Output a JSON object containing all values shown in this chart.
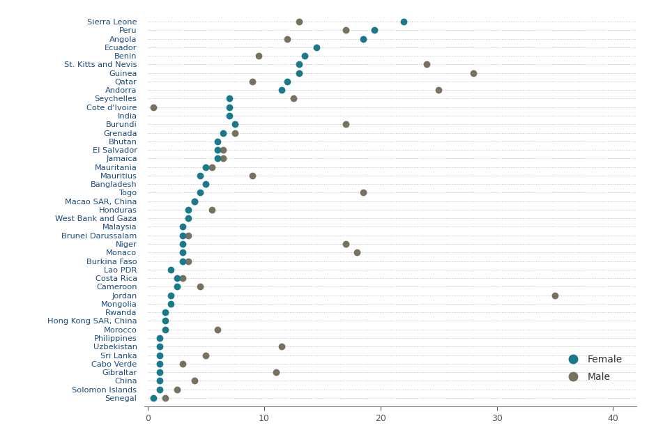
{
  "countries": [
    "Sierra Leone",
    "Peru",
    "Angola",
    "Ecuador",
    "Benin",
    "St. Kitts and Nevis",
    "Guinea",
    "Qatar",
    "Andorra",
    "Seychelles",
    "Cote d'Ivoire",
    "India",
    "Burundi",
    "Grenada",
    "Bhutan",
    "El Salvador",
    "Jamaica",
    "Mauritania",
    "Mauritius",
    "Bangladesh",
    "Togo",
    "Macao SAR, China",
    "Honduras",
    "West Bank and Gaza",
    "Malaysia",
    "Brunei Darussalam",
    "Niger",
    "Monaco",
    "Burkina Faso",
    "Lao PDR",
    "Costa Rica",
    "Cameroon",
    "Jordan",
    "Mongolia",
    "Rwanda",
    "Hong Kong SAR, China",
    "Morocco",
    "Philippines",
    "Uzbekistan",
    "Sri Lanka",
    "Cabo Verde",
    "Gibraltar",
    "China",
    "Solomon Islands",
    "Senegal"
  ],
  "female": [
    22.0,
    19.5,
    18.5,
    14.5,
    13.5,
    13.0,
    13.0,
    12.0,
    11.5,
    7.0,
    7.0,
    7.0,
    7.5,
    6.5,
    6.0,
    6.0,
    6.0,
    5.0,
    4.5,
    5.0,
    4.5,
    4.0,
    3.5,
    3.5,
    3.0,
    3.0,
    3.0,
    3.0,
    3.0,
    2.0,
    2.5,
    2.5,
    2.0,
    2.0,
    1.5,
    1.5,
    1.5,
    1.0,
    1.0,
    1.0,
    1.0,
    1.0,
    1.0,
    1.0,
    0.5
  ],
  "male": [
    13.0,
    17.0,
    12.0,
    null,
    9.5,
    24.0,
    28.0,
    9.0,
    25.0,
    12.5,
    0.5,
    null,
    17.0,
    7.5,
    null,
    6.5,
    6.5,
    5.5,
    9.0,
    null,
    18.5,
    4.0,
    5.5,
    null,
    null,
    3.5,
    17.0,
    18.0,
    3.5,
    null,
    3.0,
    4.5,
    35.0,
    null,
    null,
    null,
    6.0,
    null,
    11.5,
    5.0,
    3.0,
    11.0,
    4.0,
    2.5,
    1.5
  ],
  "female_color": "#1a7a8a",
  "male_color": "#7a7060",
  "dot_size": 50,
  "xlim": [
    -0.3,
    42
  ],
  "ylim": [
    -1,
    45
  ],
  "background_color": "#ffffff",
  "grid_color": "#bbbbbb",
  "xticks": [
    0,
    10,
    20,
    30,
    40
  ],
  "label_fontsize": 8.2,
  "tick_fontsize": 9,
  "label_color": "#1a4a7a",
  "legend_fontsize": 10
}
